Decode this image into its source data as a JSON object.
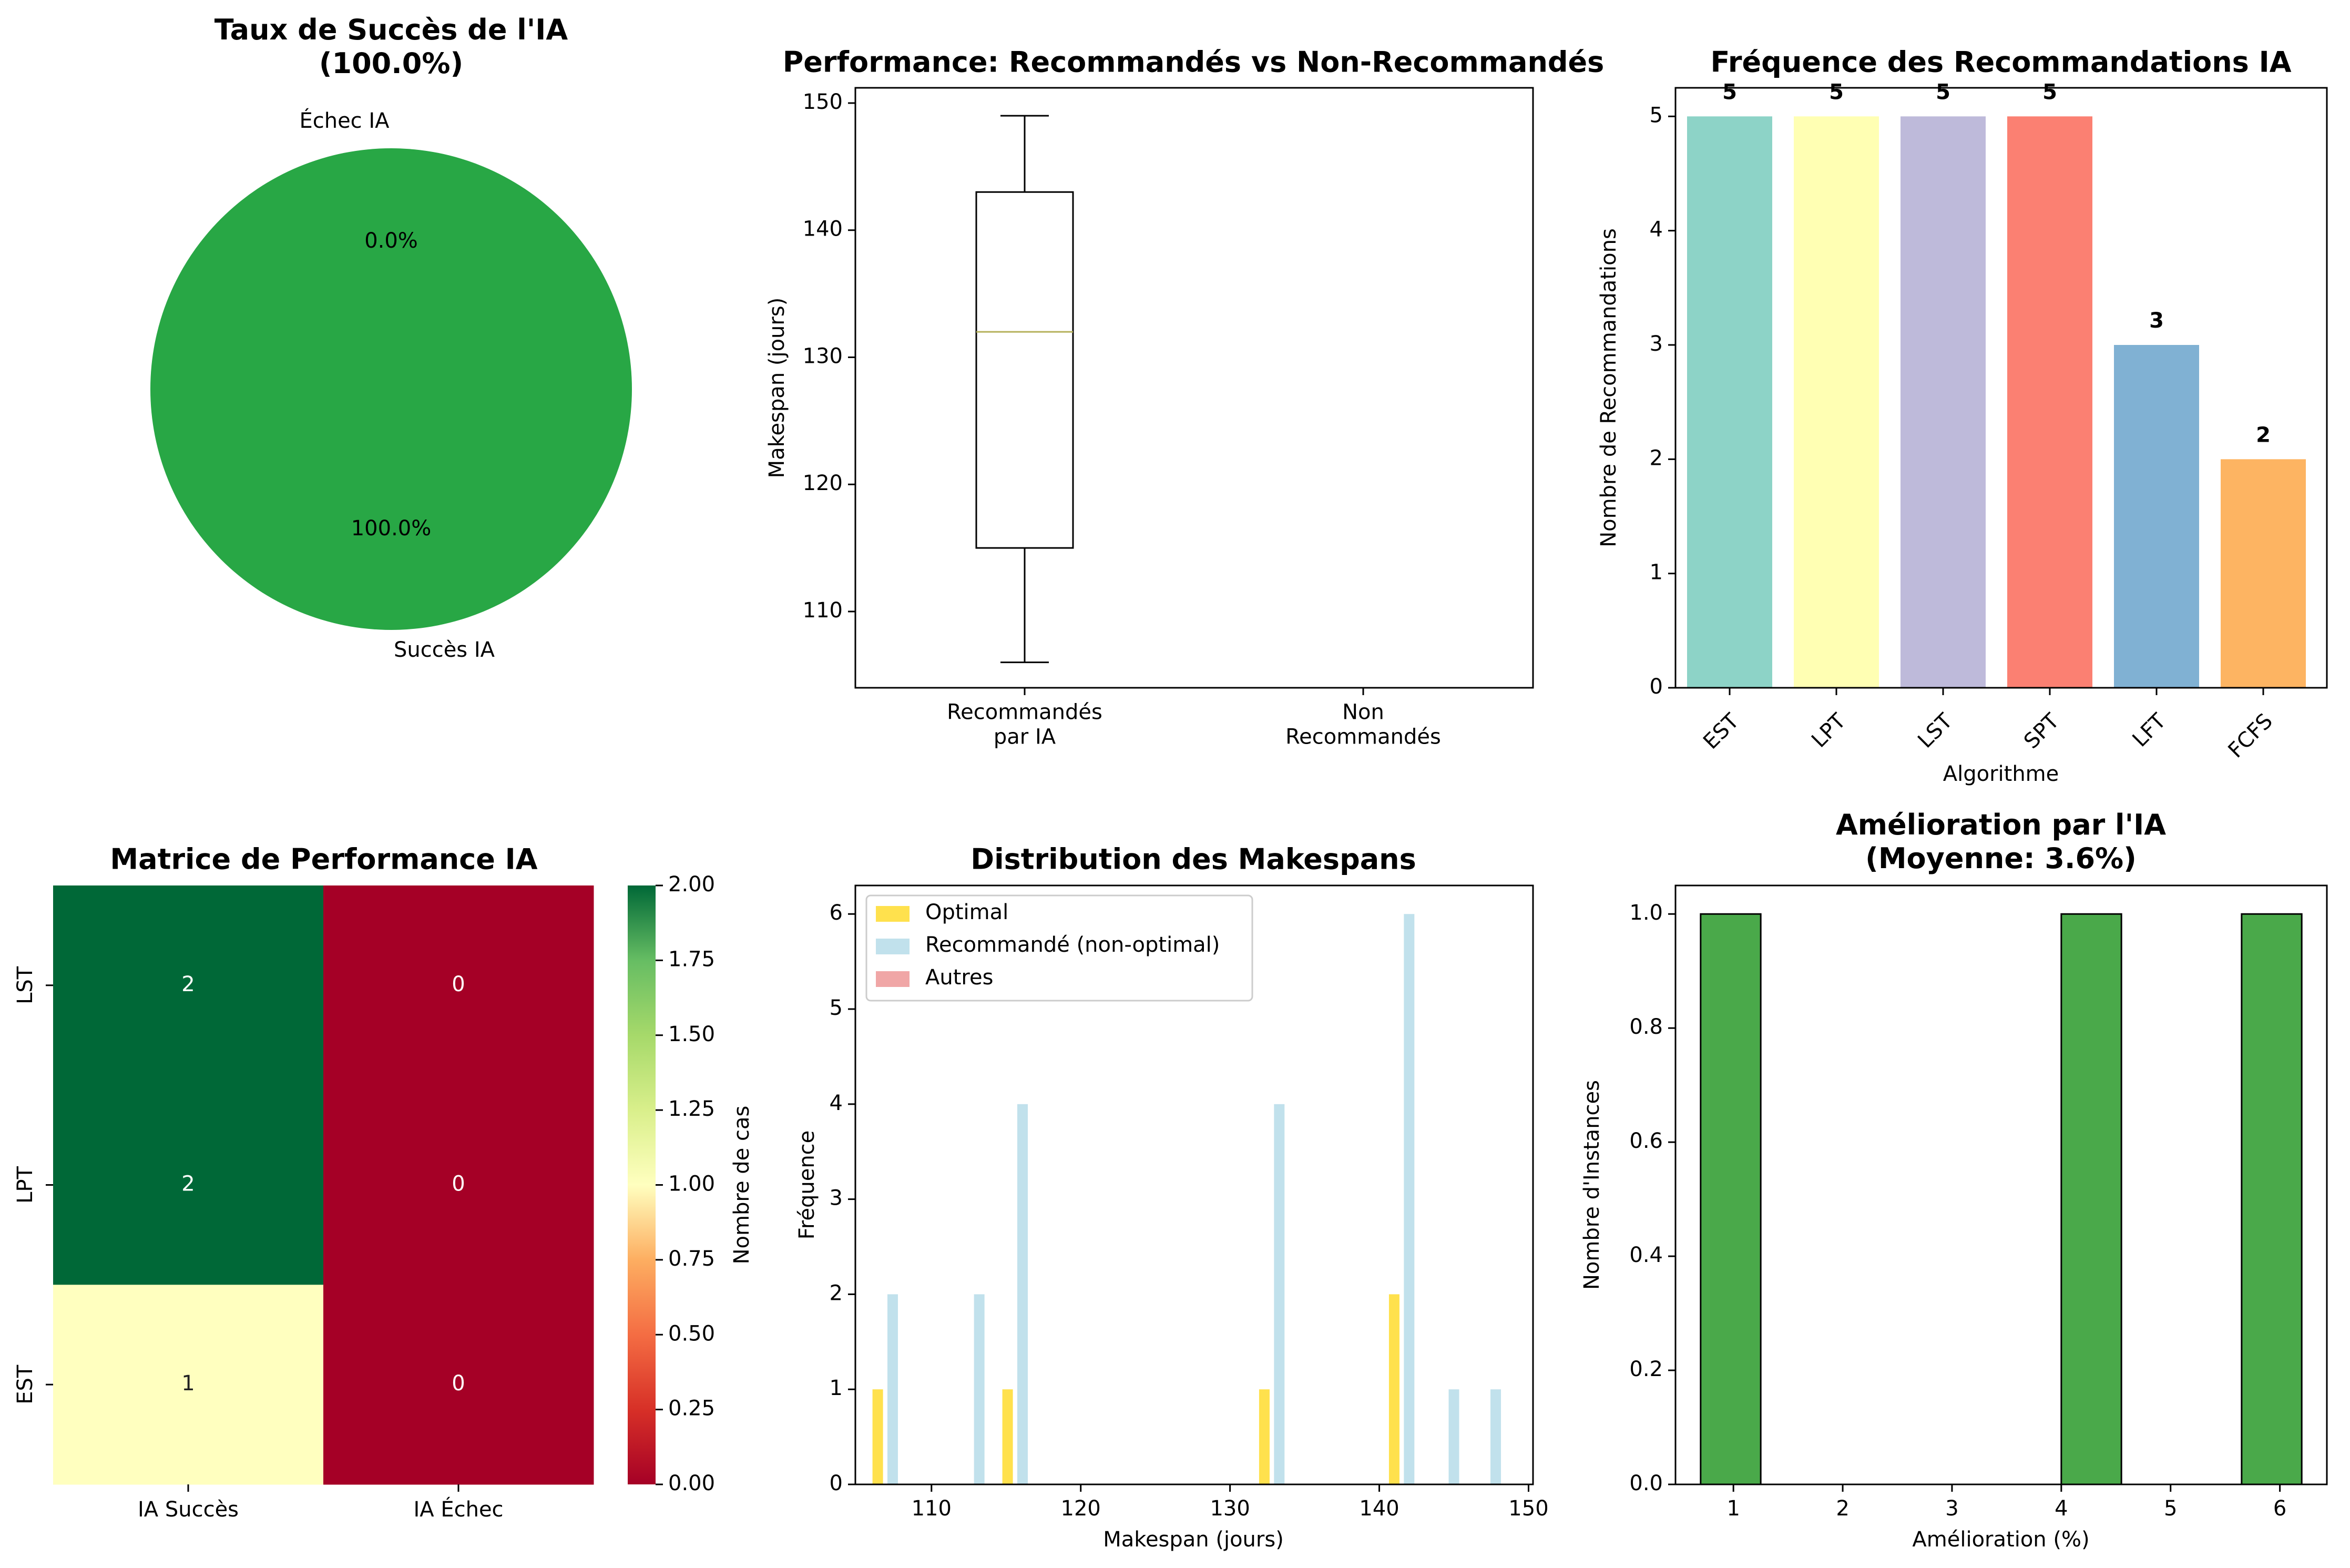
{
  "figure": {
    "colors": {
      "green": "#28a745",
      "box_median": "#b5b15a",
      "optimal": "#ffe14d",
      "recommended": "#c1e1ec",
      "others": "#f0a6a6",
      "improvement": "#4aa94a"
    }
  },
  "chart_data": [
    {
      "id": "pie",
      "type": "pie",
      "title": "Taux de Succès de l'IA\n(100.0%)",
      "labels": [
        "Succès IA",
        "Échec IA"
      ],
      "values": [
        100.0,
        0.0
      ],
      "pct_labels": [
        "100.0%",
        "0.0%"
      ],
      "colors": [
        "#28a745",
        "#dc3545"
      ]
    },
    {
      "id": "box",
      "type": "box",
      "title": "Performance: Recommandés vs Non-Recommandés",
      "ylabel": "Makespan (jours)",
      "categories": [
        "Recommandés\npar IA",
        "Non\nRecommandés"
      ],
      "boxes": [
        {
          "category": "Recommandés\npar IA",
          "min": 106,
          "q1": 115,
          "median": 132,
          "q3": 143,
          "max": 149
        },
        {
          "category": "Non\nRecommandés"
        }
      ],
      "ylim": [
        104,
        151.2
      ],
      "yticks": [
        110,
        120,
        130,
        140,
        150
      ]
    },
    {
      "id": "freq",
      "type": "bar",
      "title": "Fréquence des Recommandations IA",
      "xlabel": "Algorithme",
      "ylabel": "Nombre de Recommandations",
      "categories": [
        "EST",
        "LPT",
        "LST",
        "SPT",
        "LFT",
        "FCFS"
      ],
      "values": [
        5,
        5,
        5,
        5,
        3,
        2
      ],
      "value_labels": [
        "5",
        "5",
        "5",
        "5",
        "3",
        "2"
      ],
      "colors": [
        "#8dd3c7",
        "#ffffb3",
        "#bebada",
        "#fb8072",
        "#80b1d3",
        "#fdb462"
      ],
      "ylim": [
        0,
        5.25
      ],
      "yticks": [
        0,
        1,
        2,
        3,
        4,
        5
      ]
    },
    {
      "id": "heatmap",
      "type": "heatmap",
      "title": "Matrice de Performance IA",
      "rows": [
        "LST",
        "LPT",
        "EST"
      ],
      "cols": [
        "IA Succès",
        "IA Échec"
      ],
      "values": [
        [
          2,
          0
        ],
        [
          2,
          0
        ],
        [
          1,
          0
        ]
      ],
      "value_labels": [
        [
          "2",
          "0"
        ],
        [
          "2",
          "0"
        ],
        [
          "1",
          "0"
        ]
      ],
      "colorbar_label": "Nombre de cas",
      "colorbar_ticks": [
        "0.00",
        "0.25",
        "0.50",
        "0.75",
        "1.00",
        "1.25",
        "1.50",
        "1.75",
        "2.00"
      ],
      "vmin": 0,
      "vmax": 2,
      "colormap": "RdYlGn"
    },
    {
      "id": "hist",
      "type": "bar",
      "title": "Distribution des Makespans",
      "xlabel": "Makespan (jours)",
      "ylabel": "Fréquence",
      "legend_position": "upper-left",
      "series": [
        {
          "name": "Optimal",
          "x": [
            106.4,
            115.1,
            132.3,
            141.0
          ],
          "values": [
            1,
            1,
            1,
            2
          ]
        },
        {
          "name": "Recommandé (non-optimal)",
          "x": [
            107.4,
            113.2,
            116.1,
            133.3,
            142.0,
            145.0,
            147.8
          ],
          "values": [
            2,
            2,
            4,
            4,
            6,
            1,
            1
          ]
        },
        {
          "name": "Autres",
          "x": [],
          "values": []
        }
      ],
      "xlim": [
        104.9,
        150.3
      ],
      "xticks": [
        110,
        120,
        130,
        140,
        150
      ],
      "ylim": [
        0,
        6.3
      ],
      "yticks": [
        0,
        1,
        2,
        3,
        4,
        5,
        6
      ]
    },
    {
      "id": "improve",
      "type": "bar",
      "title": "Amélioration par l'IA\n(Moyenne: 3.6%)",
      "xlabel": "Amélioration (%)",
      "ylabel": "Nombre d'Instances",
      "bins": [
        {
          "from": 0.7,
          "to": 1.25,
          "count": 1
        },
        {
          "from": 4.0,
          "to": 4.55,
          "count": 1
        },
        {
          "from": 5.65,
          "to": 6.2,
          "count": 1
        }
      ],
      "xlim": [
        0.47,
        6.43
      ],
      "xticks": [
        1,
        2,
        3,
        4,
        5,
        6
      ],
      "ylim": [
        0,
        1.05
      ],
      "yticks": [
        "0.0",
        "0.2",
        "0.4",
        "0.6",
        "0.8",
        "1.0"
      ]
    }
  ]
}
